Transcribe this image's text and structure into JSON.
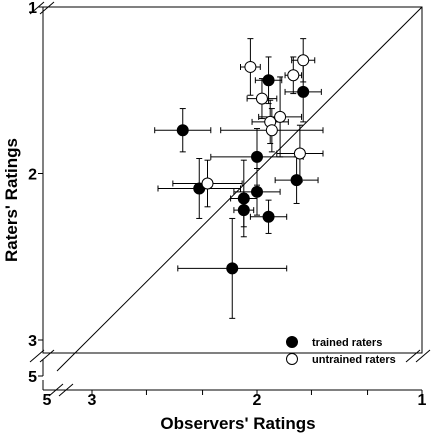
{
  "chart_data": {
    "type": "scatter",
    "xlabel": "Observers' Ratings",
    "ylabel": "Raters' Ratings",
    "x_axis": {
      "reversed": true,
      "main_range": [
        3.3,
        1.0
      ],
      "break_label": "5",
      "tick_labels": [
        "5",
        "3",
        "2",
        "1"
      ],
      "minor_ticks": [
        3.0,
        2.67,
        2.33,
        2.0,
        1.67,
        1.33,
        1.0
      ]
    },
    "y_axis": {
      "reversed": true,
      "main_range": [
        1.0,
        3.0
      ],
      "break_label": "5",
      "tick_labels": [
        "1",
        "2",
        "3",
        "5"
      ]
    },
    "reference_line": "identity (y = x)",
    "grid": false,
    "legend_position": "bottom-right",
    "series": [
      {
        "name": "trained raters",
        "marker": "filled-circle",
        "color": "#000000",
        "points": [
          {
            "x": 1.93,
            "y": 1.44,
            "xerr": 0.08,
            "yerr": 0.14
          },
          {
            "x": 1.72,
            "y": 1.51,
            "xerr": 0.11,
            "yerr": 0.18
          },
          {
            "x": 2.45,
            "y": 1.74,
            "xerr": 0.17,
            "yerr": 0.13
          },
          {
            "x": 2.0,
            "y": 1.9,
            "xerr": 0.28,
            "yerr": 0.17
          },
          {
            "x": 1.76,
            "y": 2.04,
            "xerr": 0.13,
            "yerr": 0.14
          },
          {
            "x": 2.35,
            "y": 2.09,
            "xerr": 0.25,
            "yerr": 0.18
          },
          {
            "x": 2.0,
            "y": 2.11,
            "xerr": 0.14,
            "yerr": 0.14
          },
          {
            "x": 2.08,
            "y": 2.15,
            "xerr": 0.08,
            "yerr": 0.23
          },
          {
            "x": 2.08,
            "y": 2.22,
            "xerr": 0.06,
            "yerr": 0.1
          },
          {
            "x": 1.93,
            "y": 2.26,
            "xerr": 0.11,
            "yerr": 0.1
          },
          {
            "x": 2.15,
            "y": 2.57,
            "xerr": 0.33,
            "yerr": 0.3
          }
        ]
      },
      {
        "name": "untrained raters",
        "marker": "open-circle",
        "color": "#000000",
        "points": [
          {
            "x": 1.72,
            "y": 1.32,
            "xerr": 0.07,
            "yerr": 0.13
          },
          {
            "x": 2.04,
            "y": 1.36,
            "xerr": 0.06,
            "yerr": 0.17
          },
          {
            "x": 1.78,
            "y": 1.41,
            "xerr": 0.05,
            "yerr": 0.11
          },
          {
            "x": 1.97,
            "y": 1.55,
            "xerr": 0.09,
            "yerr": 0.12
          },
          {
            "x": 1.86,
            "y": 1.66,
            "xerr": 0.13,
            "yerr": 0.24
          },
          {
            "x": 1.92,
            "y": 1.69,
            "xerr": 0.11,
            "yerr": 0.13
          },
          {
            "x": 1.91,
            "y": 1.74,
            "xerr": 0.31,
            "yerr": 0.13
          },
          {
            "x": 1.74,
            "y": 1.88,
            "xerr": 0.14,
            "yerr": 0.17
          },
          {
            "x": 2.3,
            "y": 2.06,
            "xerr": 0.21,
            "yerr": 0.14
          }
        ]
      }
    ]
  }
}
